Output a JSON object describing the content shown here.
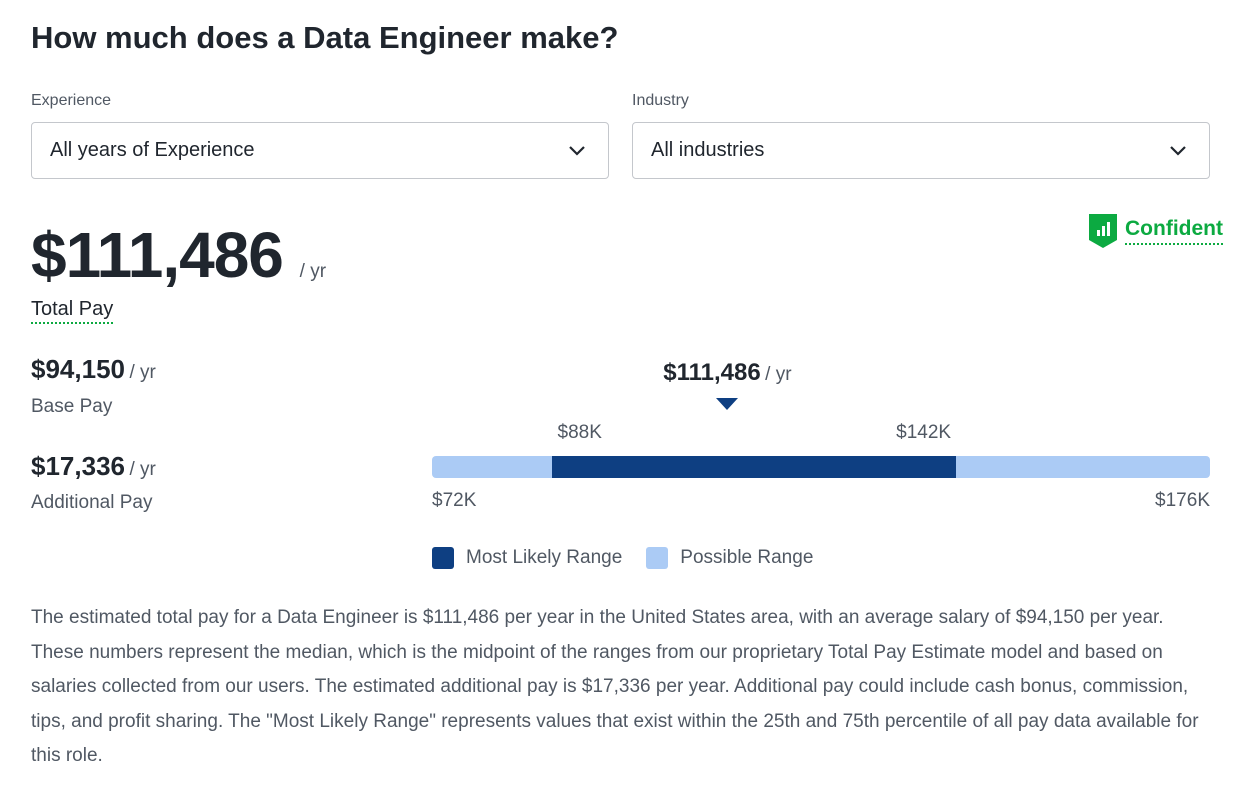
{
  "title": "How much does a Data Engineer make?",
  "filters": {
    "experience_label": "Experience",
    "experience_value": "All years of Experience",
    "industry_label": "Industry",
    "industry_value": "All industries"
  },
  "confidence": {
    "label": "Confident",
    "icon": "shield-bar-chart-icon",
    "color": "#0caa41"
  },
  "total": {
    "value": "$111,486",
    "unit": "/ yr",
    "label": "Total Pay"
  },
  "base": {
    "value": "$94,150",
    "unit": "/ yr",
    "label": "Base Pay"
  },
  "additional": {
    "value": "$17,336",
    "unit": "/ yr",
    "label": "Additional Pay"
  },
  "range": {
    "marker_label": "$111,486",
    "marker_unit": "/ yr",
    "median": 111.486,
    "min": 72,
    "max": 176,
    "likely_low": 88,
    "likely_high": 142,
    "min_label": "$72K",
    "max_label": "$176K",
    "likely_low_label": "$88K",
    "likely_high_label": "$142K",
    "colors": {
      "likely": "#0e3f82",
      "possible": "#abcbf5"
    },
    "legend": [
      "Most Likely Range",
      "Possible Range"
    ]
  },
  "description": "The estimated total pay for a Data Engineer is $111,486 per year in the United States area, with an average salary of $94,150 per year. These numbers represent the median, which is the midpoint of the ranges from our proprietary Total Pay Estimate model and based on salaries collected from our users. The estimated additional pay is $17,336 per year. Additional pay could include cash bonus, commission, tips, and profit sharing. The \"Most Likely Range\" represents values that exist within the 25th and 75th percentile of all pay data available for this role."
}
